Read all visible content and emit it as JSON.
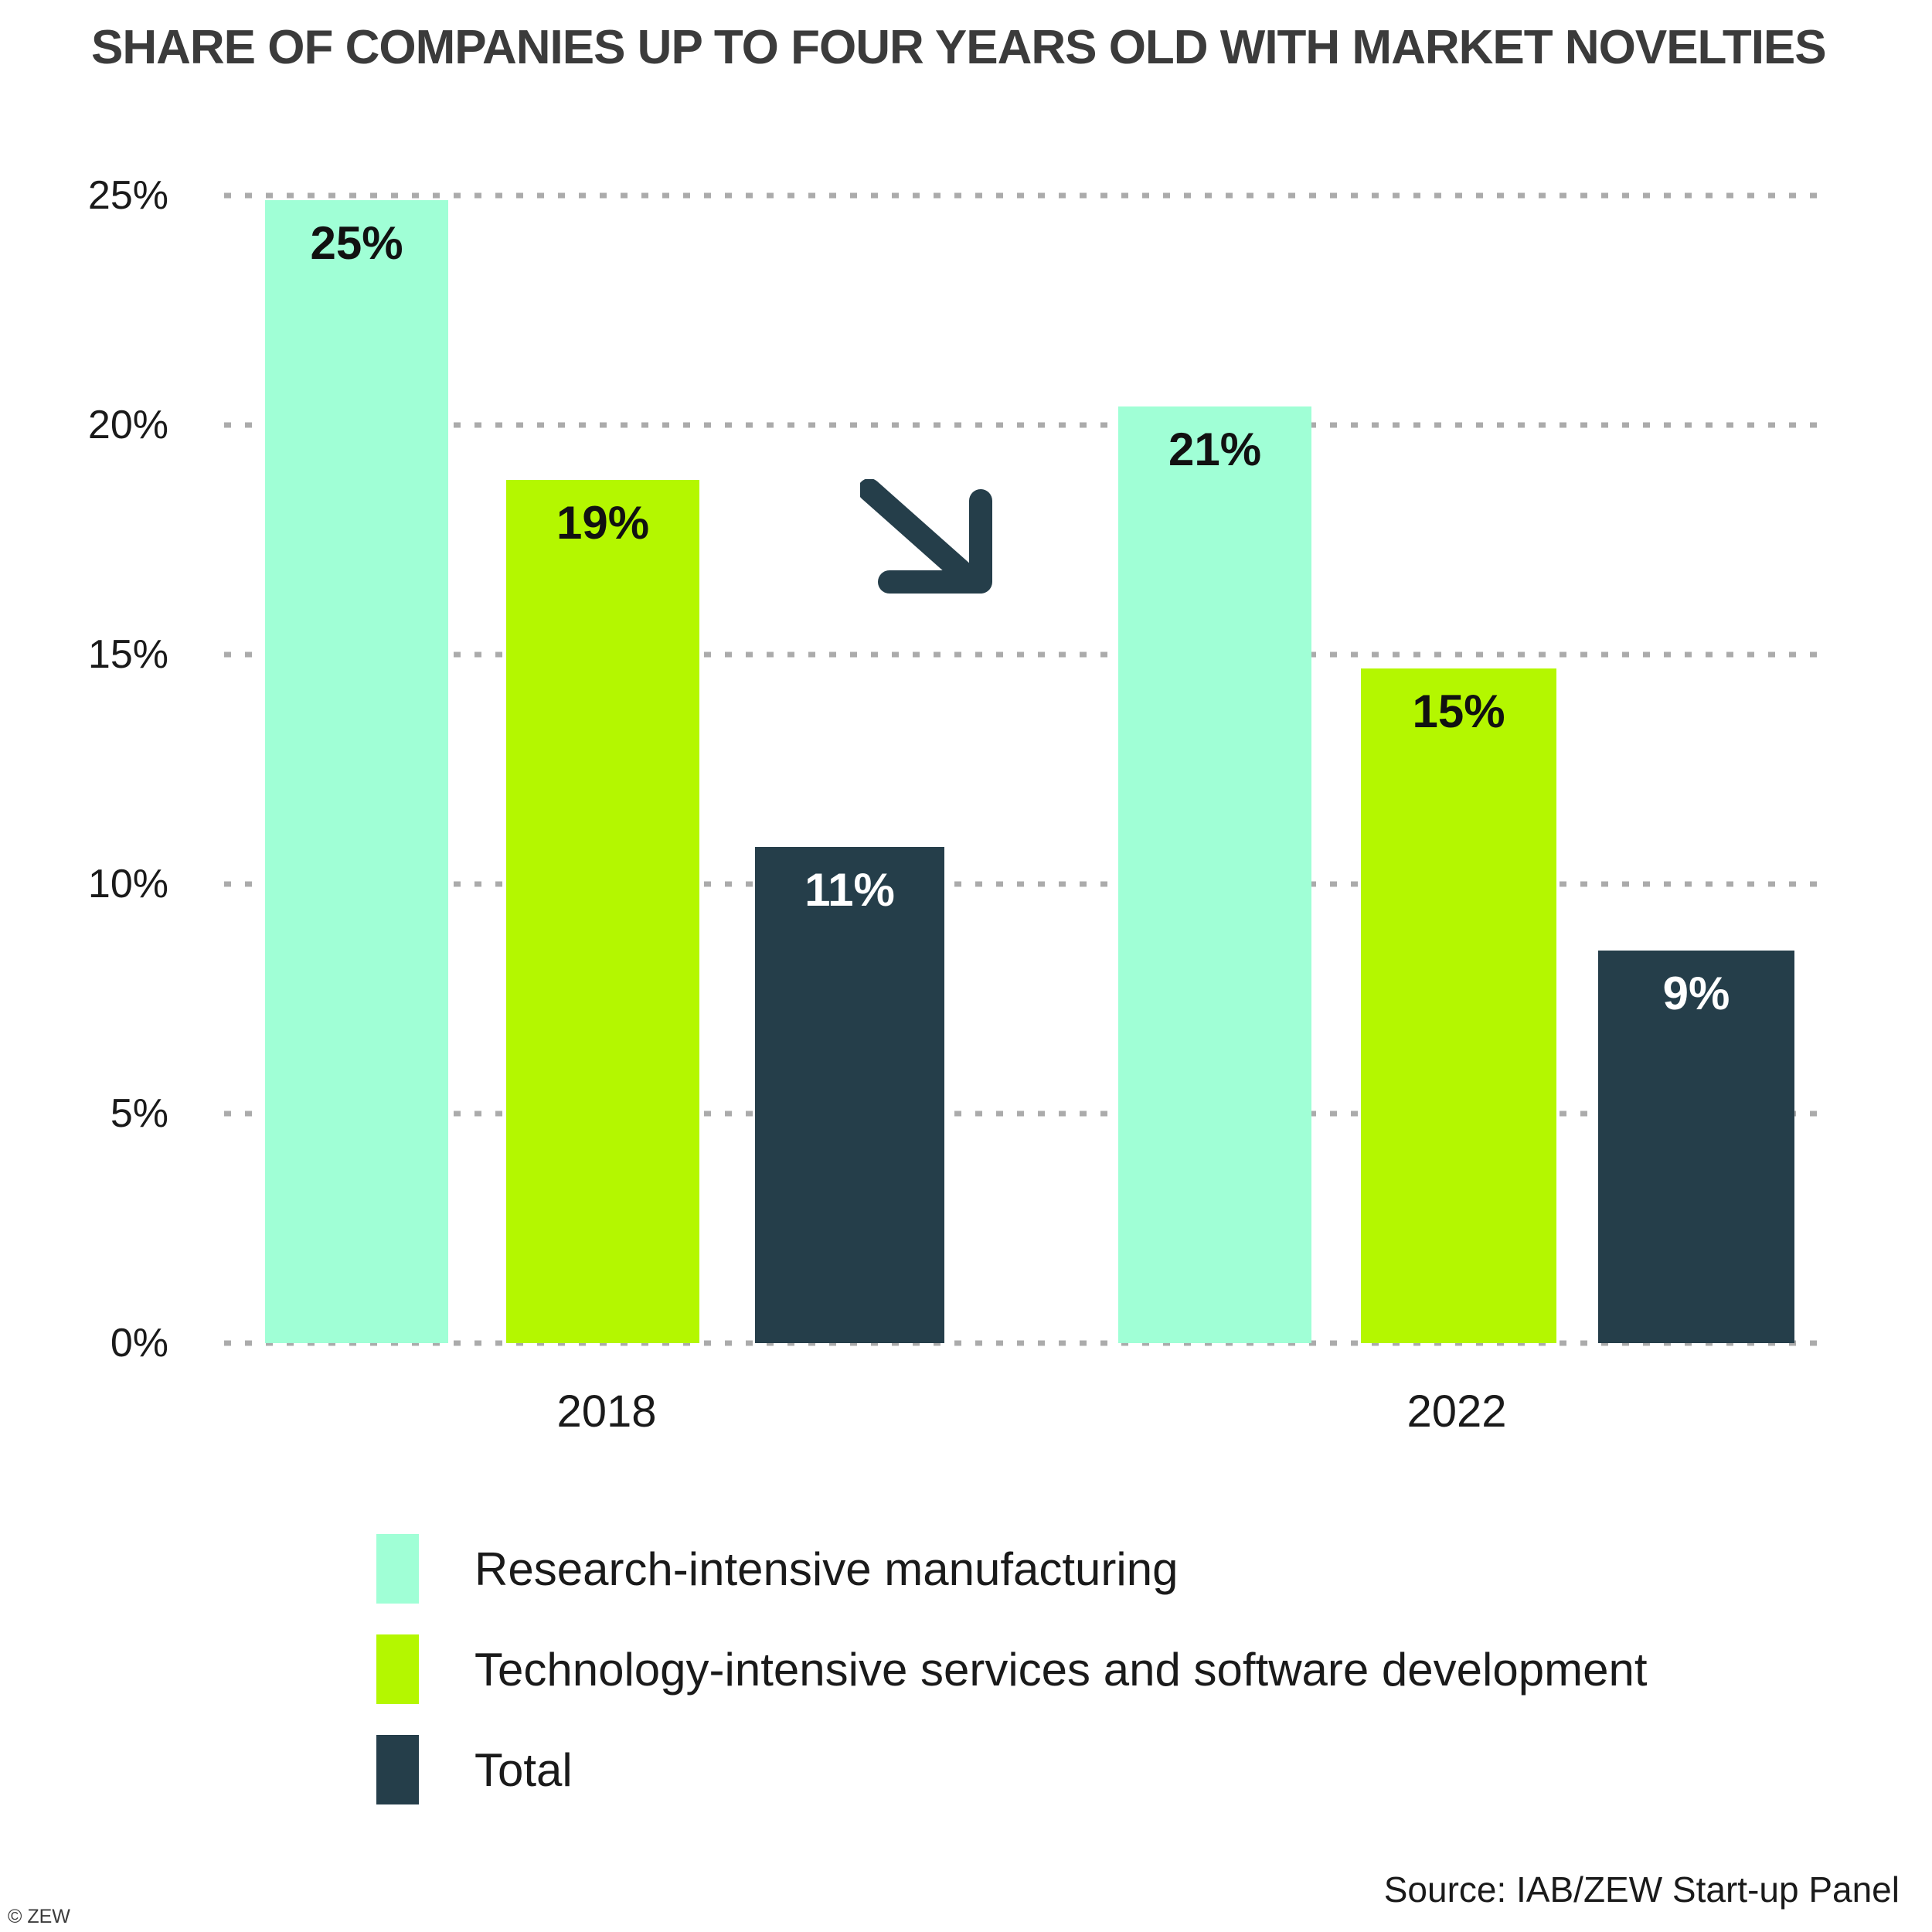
{
  "title": "SHARE OF COMPANIES UP TO FOUR YEARS OLD WITH MARKET NOVELTIES",
  "source": "Source: IAB/ZEW Start-up Panel",
  "copyright": "© ZEW",
  "colors": {
    "mint": "#A0FFD6",
    "lime": "#B4F700",
    "dark": "#253E4A",
    "grid": "#ABABAB",
    "title_text": "#3B3B3B",
    "text": "#1A1A1A"
  },
  "y_axis": {
    "ticks": [
      "25%",
      "20%",
      "15%",
      "10%",
      "5%",
      "0%"
    ],
    "max": 25
  },
  "annotation": "downward-trend-arrow between year groups",
  "chart_data": {
    "type": "bar",
    "title": "SHARE OF COMPANIES UP TO FOUR YEARS OLD WITH MARKET NOVELTIES",
    "categories": [
      "2018",
      "2022"
    ],
    "series": [
      {
        "name": "Research-intensive manufacturing",
        "color": "#A0FFD6",
        "values": [
          25,
          21
        ],
        "labels": [
          "25%",
          "21%"
        ],
        "bar_heights_pct": [
          24.9,
          20.4
        ]
      },
      {
        "name": "Technology-intensive services and software development",
        "color": "#B4F700",
        "values": [
          19,
          15
        ],
        "labels": [
          "19%",
          "15%"
        ],
        "bar_heights_pct": [
          18.8,
          14.7
        ]
      },
      {
        "name": "Total",
        "color": "#253E4A",
        "values": [
          11,
          9
        ],
        "labels": [
          "11%",
          "9%"
        ],
        "bar_heights_pct": [
          10.8,
          8.55
        ]
      }
    ],
    "xlabel": "",
    "ylabel": "",
    "ylim": [
      0,
      25
    ],
    "grid": "dotted horizontal gridlines",
    "legend_position": "bottom-left"
  }
}
